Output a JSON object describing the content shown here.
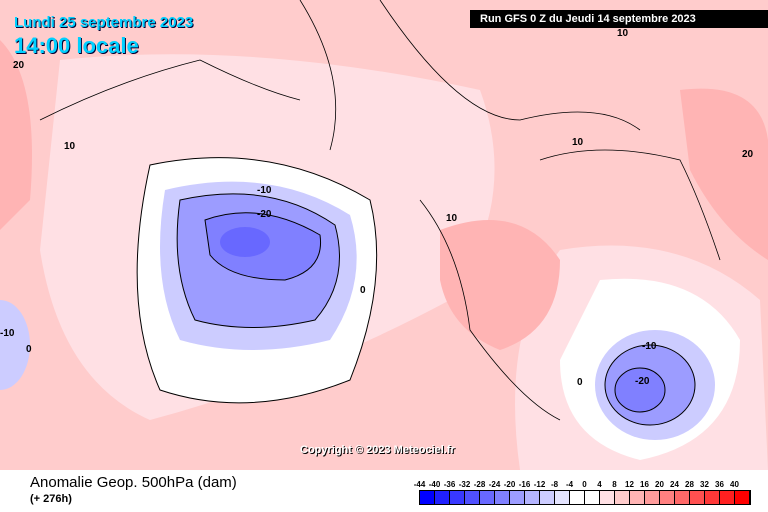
{
  "header": {
    "date": "Lundi 25 septembre 2023",
    "time": "14:00 locale",
    "run": "Run GFS 0 Z du Jeudi 14 septembre 2023"
  },
  "copyright": "Copyright © 2023 Meteociel.fr",
  "footer": {
    "title": "Anomalie Geop. 500hPa (dam)",
    "lead": "(+ 276h)"
  },
  "contour_labels": [
    "20",
    "10",
    "-10",
    "-20",
    "0",
    "10",
    "10",
    "20",
    "10",
    "-10",
    "0",
    "-10",
    "-20",
    "0"
  ],
  "legend": {
    "labels": [
      "-44",
      "-40",
      "-36",
      "-32",
      "-28",
      "-24",
      "-20",
      "-16",
      "-12",
      "-8",
      "-4",
      "0",
      "4",
      "8",
      "12",
      "16",
      "20",
      "24",
      "28",
      "32",
      "36",
      "40"
    ],
    "colors": [
      "#0000ff",
      "#2020ff",
      "#3838ff",
      "#5050ff",
      "#6868ff",
      "#8080ff",
      "#9c9cff",
      "#b4b4ff",
      "#ccccff",
      "#e4e4ff",
      "#ffffff",
      "#ffffff",
      "#ffe0e4",
      "#ffcccc",
      "#ffb4b4",
      "#ff9c9c",
      "#ff8080",
      "#ff6868",
      "#ff5050",
      "#ff3838",
      "#ff2020",
      "#ff0000"
    ]
  }
}
